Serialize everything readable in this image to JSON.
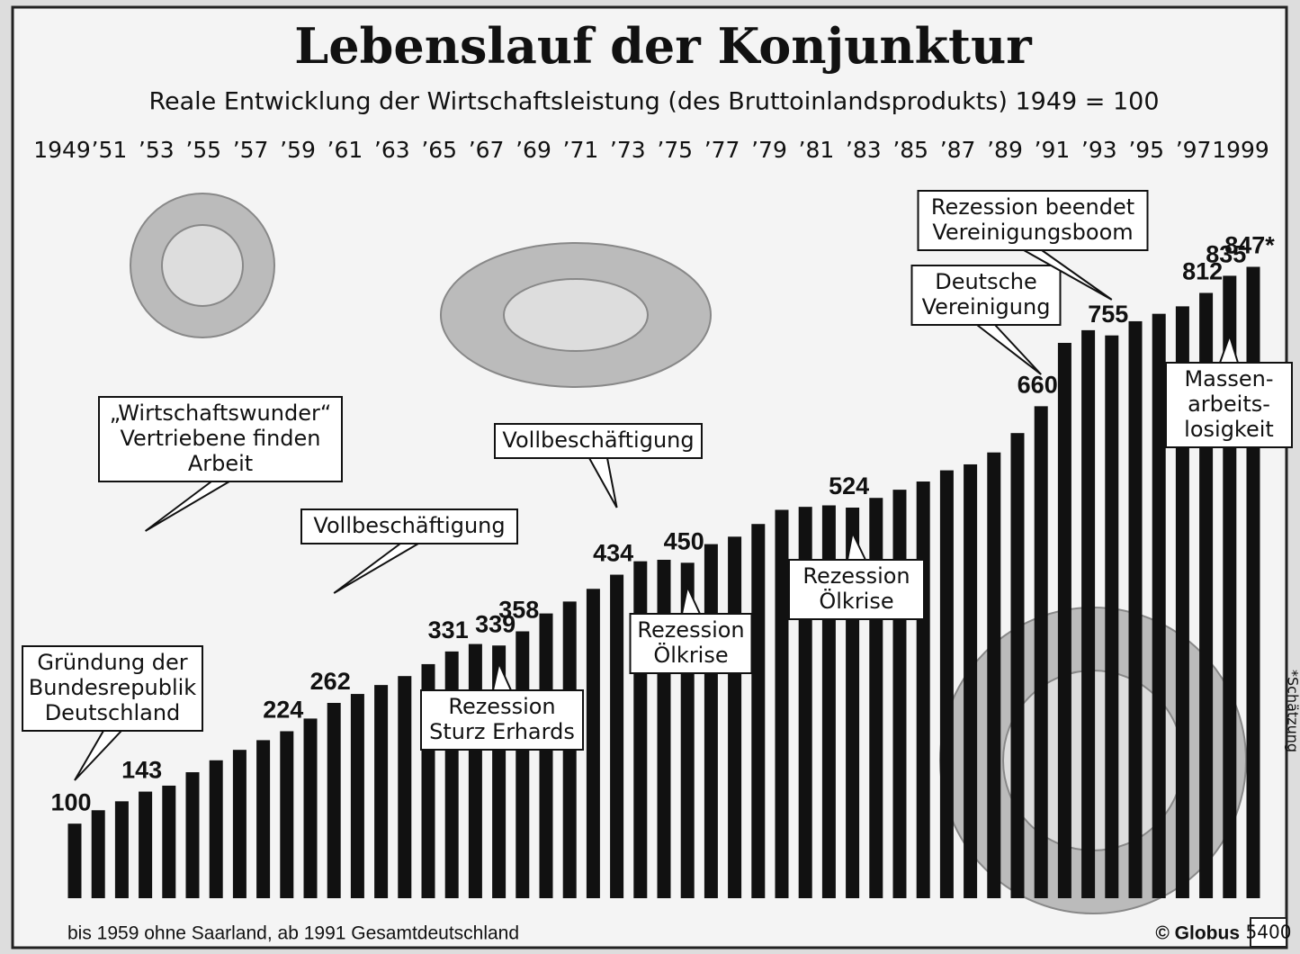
{
  "chart_data": {
    "type": "bar",
    "title": "Lebenslauf der Konjunktur",
    "subtitle": "Reale Entwicklung der Wirtschaftsleistung (des Bruttoinlandsprodukts) 1949 = 100",
    "categories": [
      "1949",
      null,
      "’51",
      null,
      "’53",
      null,
      "’55",
      null,
      "’57",
      null,
      "’59",
      null,
      "’61",
      null,
      "’63",
      null,
      "’65",
      null,
      "’67",
      null,
      "’69",
      null,
      "’71",
      null,
      "’73",
      null,
      "’75",
      null,
      "’77",
      null,
      "’79",
      null,
      "’81",
      null,
      "’83",
      null,
      "’85",
      null,
      "’87",
      null,
      "’89",
      null,
      "’91",
      null,
      "’93",
      null,
      "’95",
      null,
      "’97",
      null,
      "1999"
    ],
    "values": [
      100,
      118,
      130,
      143,
      151,
      169,
      185,
      199,
      212,
      224,
      241,
      262,
      274,
      286,
      298,
      314,
      331,
      341,
      339,
      358,
      382,
      398,
      415,
      434,
      452,
      454,
      450,
      475,
      485,
      502,
      521,
      525,
      527,
      524,
      537,
      548,
      559,
      574,
      582,
      598,
      624,
      660,
      745,
      762,
      755,
      774,
      784,
      794,
      812,
      835,
      847
    ],
    "value_labels": [
      "100",
      null,
      null,
      "143",
      null,
      null,
      null,
      null,
      null,
      "224",
      null,
      "262",
      null,
      null,
      null,
      null,
      "331",
      null,
      "339",
      "358",
      null,
      null,
      null,
      "434",
      null,
      null,
      "450",
      null,
      null,
      null,
      null,
      null,
      null,
      "524",
      null,
      null,
      null,
      null,
      null,
      null,
      null,
      "660",
      null,
      null,
      "755",
      null,
      null,
      null,
      "812",
      "835",
      "847*"
    ],
    "color": "#111111",
    "ylim": [
      0,
      850
    ],
    "annotations": [
      {
        "lines": [
          "Gründung der",
          "Bundesrepublik",
          "Deutschland"
        ],
        "index": 0
      },
      {
        "lines": [
          "„Wirtschaftswunder“",
          "Vertriebene finden",
          "Arbeit"
        ],
        "index": 3
      },
      {
        "lines": [
          "Vollbeschäftigung"
        ],
        "index": 11
      },
      {
        "lines": [
          "Rezession",
          "Sturz Erhards"
        ],
        "index": 18
      },
      {
        "lines": [
          "Vollbeschäftigung"
        ],
        "index": 23
      },
      {
        "lines": [
          "Rezession",
          "Ölkrise"
        ],
        "index": 26
      },
      {
        "lines": [
          "Rezession",
          "Ölkrise"
        ],
        "index": 33
      },
      {
        "lines": [
          "Deutsche",
          "Vereinigung"
        ],
        "index": 41
      },
      {
        "lines": [
          "Rezession beendet",
          "Vereinigungsboom"
        ],
        "index": 44
      },
      {
        "lines": [
          "Massen-",
          "arbeits-",
          "losigkeit"
        ],
        "index": 49
      }
    ],
    "footnote": "bis 1959 ohne Saarland, ab 1991 Gesamtdeutschland",
    "source": "© Globus",
    "code": "5400",
    "estimate_note": "*Schätzung"
  }
}
